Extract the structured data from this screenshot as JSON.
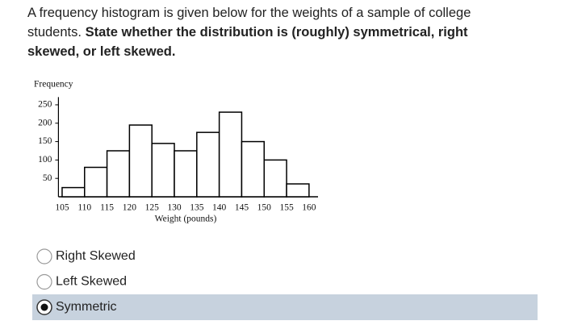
{
  "question": {
    "text": "A frequency histogram is given below for the weights of a sample of college students.",
    "bold_text": "State whether the distribution is (roughly) symmetrical, right skewed, or left skewed."
  },
  "chart_data": {
    "type": "histogram",
    "ylabel": "Frequency",
    "xlabel": "Weight (pounds)",
    "bins": [
      105,
      110,
      115,
      120,
      125,
      130,
      135,
      140,
      145,
      150,
      155,
      160
    ],
    "values": [
      25,
      80,
      125,
      195,
      145,
      125,
      175,
      230,
      150,
      100,
      35
    ],
    "color": "#ffffff",
    "edgecolor": "#000000",
    "xlim": [
      104,
      162
    ],
    "ylim": [
      0,
      260
    ],
    "yticks": [
      50,
      100,
      150,
      200,
      250
    ]
  },
  "options": [
    {
      "label": "Right Skewed",
      "selected": false
    },
    {
      "label": "Left Skewed",
      "selected": false
    },
    {
      "label": "Symmetric",
      "selected": true
    }
  ]
}
